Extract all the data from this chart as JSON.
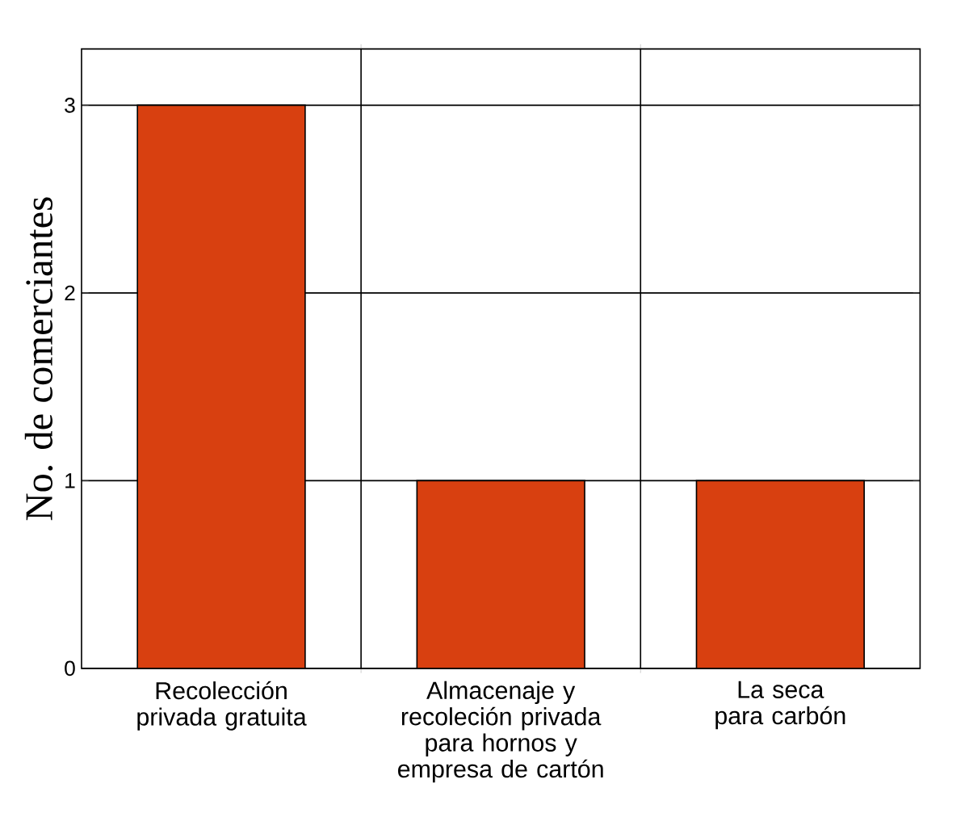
{
  "chart_data": {
    "type": "bar",
    "ylabel": "No. de comerciantes",
    "categories": [
      "Recolección privada gratuita",
      "Almacenaje y recoleción privada para hornos y empresa de cartón",
      "La seca para carbón"
    ],
    "values": [
      3,
      1,
      1
    ],
    "color": "#d84010",
    "ylim": [
      0,
      3.3
    ],
    "yticks": [
      0,
      1,
      2,
      3
    ],
    "grid": true
  }
}
